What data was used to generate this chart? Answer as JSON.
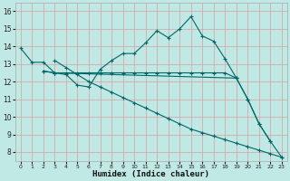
{
  "xlabel": "Humidex (Indice chaleur)",
  "bg_color": "#c0e8e4",
  "grid_color": "#e8f4f0",
  "line_color": "#006868",
  "xlim": [
    -0.5,
    23.5
  ],
  "ylim": [
    7.5,
    16.5
  ],
  "yticks": [
    8,
    9,
    10,
    11,
    12,
    13,
    14,
    15,
    16
  ],
  "xticks": [
    0,
    1,
    2,
    3,
    4,
    5,
    6,
    7,
    8,
    9,
    10,
    11,
    12,
    13,
    14,
    15,
    16,
    17,
    18,
    19,
    20,
    21,
    22,
    23
  ],
  "line1_x": [
    0,
    1,
    2,
    3,
    4,
    5,
    6,
    7,
    8,
    9,
    10,
    11,
    12,
    13,
    14,
    15,
    16,
    17,
    18,
    19,
    20,
    21,
    22
  ],
  "line1_y": [
    13.9,
    13.1,
    13.1,
    12.5,
    12.4,
    11.8,
    11.7,
    12.7,
    13.2,
    13.6,
    13.6,
    14.2,
    14.9,
    14.5,
    15.0,
    15.7,
    14.6,
    14.3,
    13.3,
    12.2,
    11.0,
    9.6,
    8.6
  ],
  "line2_x": [
    2,
    3,
    4,
    5,
    6,
    7,
    8,
    9,
    10,
    11,
    12,
    13,
    14,
    15,
    16,
    17,
    18,
    19
  ],
  "line2_y": [
    12.6,
    12.5,
    12.5,
    12.5,
    12.5,
    12.5,
    12.5,
    12.5,
    12.5,
    12.5,
    12.5,
    12.5,
    12.5,
    12.5,
    12.5,
    12.5,
    12.5,
    12.2
  ],
  "line3_x": [
    2,
    3,
    19,
    20,
    21,
    22,
    23
  ],
  "line3_y": [
    12.6,
    12.5,
    12.2,
    11.0,
    9.6,
    8.6,
    7.7
  ],
  "line4_x": [
    3,
    4,
    5,
    6,
    7,
    8,
    9,
    10,
    11,
    12,
    13,
    14,
    15,
    16,
    17,
    18,
    19,
    20,
    21,
    22,
    23
  ],
  "line4_y": [
    13.2,
    12.8,
    12.4,
    12.0,
    11.7,
    11.4,
    11.1,
    10.8,
    10.5,
    10.2,
    9.9,
    9.6,
    9.3,
    9.1,
    8.9,
    8.7,
    8.5,
    8.3,
    8.1,
    7.9,
    7.7
  ]
}
